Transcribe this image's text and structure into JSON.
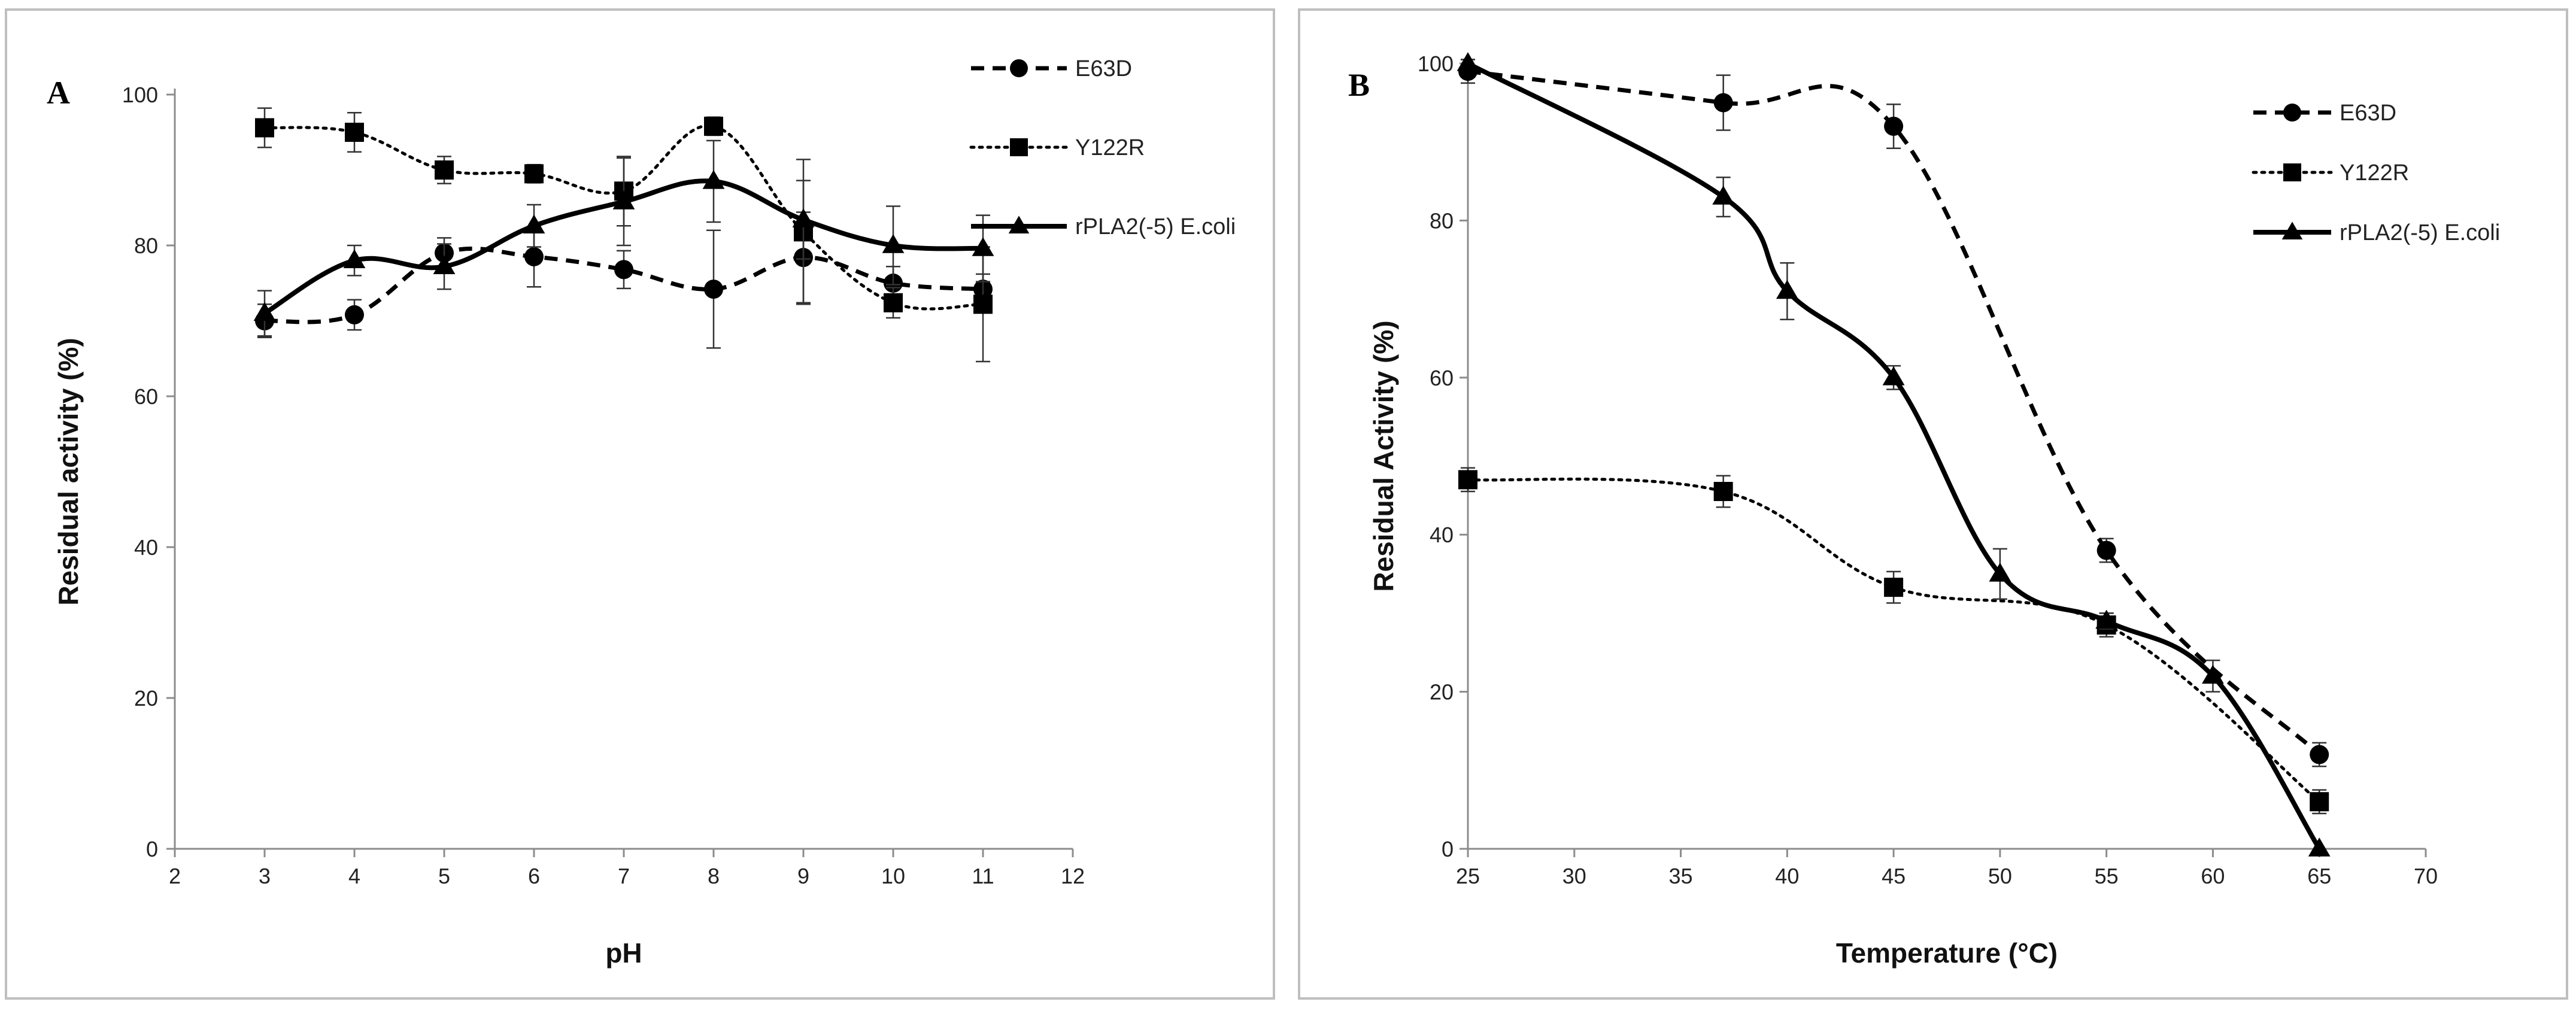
{
  "chart_data": [
    {
      "type": "line",
      "panel_label": "A",
      "title": "",
      "xlabel": "pH",
      "ylabel": "Residual activity (%)",
      "xlim": [
        2,
        12
      ],
      "ylim": [
        0,
        100
      ],
      "xticks": [
        2,
        3,
        4,
        5,
        6,
        7,
        8,
        9,
        10,
        11,
        12
      ],
      "yticks": [
        0,
        20,
        40,
        60,
        80,
        100
      ],
      "grid": false,
      "legend_position": "top-right",
      "series": [
        {
          "name": "E63D",
          "style": "dashed",
          "marker": "circle",
          "x": [
            3,
            4,
            5,
            6,
            7,
            8,
            9,
            10,
            11
          ],
          "y": [
            70,
            70.8,
            79,
            78.5,
            76.8,
            74.2,
            78.4,
            75,
            74.2
          ],
          "err": [
            2.2,
            2,
            2,
            4,
            2.5,
            7.8,
            6,
            2.2,
            2
          ]
        },
        {
          "name": "Y122R",
          "style": "dotted",
          "marker": "square",
          "x": [
            3,
            4,
            5,
            6,
            7,
            8,
            9,
            10,
            11
          ],
          "y": [
            95.6,
            95,
            90,
            89.5,
            87.2,
            95.8,
            81.8,
            72.4,
            72.2
          ],
          "err": [
            2.6,
            2.6,
            1.8,
            1.2,
            4.6,
            1.2,
            9.6,
            2,
            7.6
          ]
        },
        {
          "name": "rPLA2(-5) E.coli",
          "style": "solid",
          "marker": "triangle",
          "x": [
            3,
            4,
            5,
            6,
            7,
            8,
            9,
            10,
            11
          ],
          "y": [
            71,
            78,
            77.2,
            82.6,
            85.8,
            88.5,
            83.4,
            80,
            79.6
          ],
          "err": [
            3,
            2,
            3,
            2.8,
            5.8,
            5.4,
            5.2,
            5.2,
            4.4
          ]
        }
      ]
    },
    {
      "type": "line",
      "panel_label": "B",
      "title": "",
      "xlabel": "Temperature (°C)",
      "ylabel": "Residual Activity (%)",
      "xlim": [
        25,
        70
      ],
      "ylim": [
        0,
        100
      ],
      "xticks": [
        25,
        30,
        35,
        40,
        45,
        50,
        55,
        60,
        65,
        70
      ],
      "yticks": [
        0,
        20,
        40,
        60,
        80,
        100
      ],
      "grid": false,
      "legend_position": "top-right",
      "series": [
        {
          "name": "E63D",
          "style": "dashed",
          "marker": "circle",
          "x": [
            25,
            37,
            45,
            55,
            65
          ],
          "y": [
            99,
            95,
            92,
            38,
            12
          ],
          "err": [
            1.5,
            3.5,
            2.8,
            1.5,
            1.5
          ]
        },
        {
          "name": "Y122R",
          "style": "dotted",
          "marker": "square",
          "x": [
            25,
            37,
            45,
            55,
            65
          ],
          "y": [
            47,
            45.5,
            33.3,
            28.5,
            6
          ],
          "err": [
            1.5,
            2,
            2,
            1.5,
            1.5
          ]
        },
        {
          "name": "rPLA2(-5) E.coli",
          "style": "solid",
          "marker": "triangle",
          "x": [
            25,
            37,
            40,
            45,
            50,
            55,
            60,
            65
          ],
          "y": [
            100,
            83,
            71,
            60,
            35,
            29,
            22,
            0
          ],
          "err": [
            0.5,
            2.5,
            3.6,
            1.5,
            3.2,
            1,
            2,
            0
          ]
        }
      ]
    }
  ]
}
